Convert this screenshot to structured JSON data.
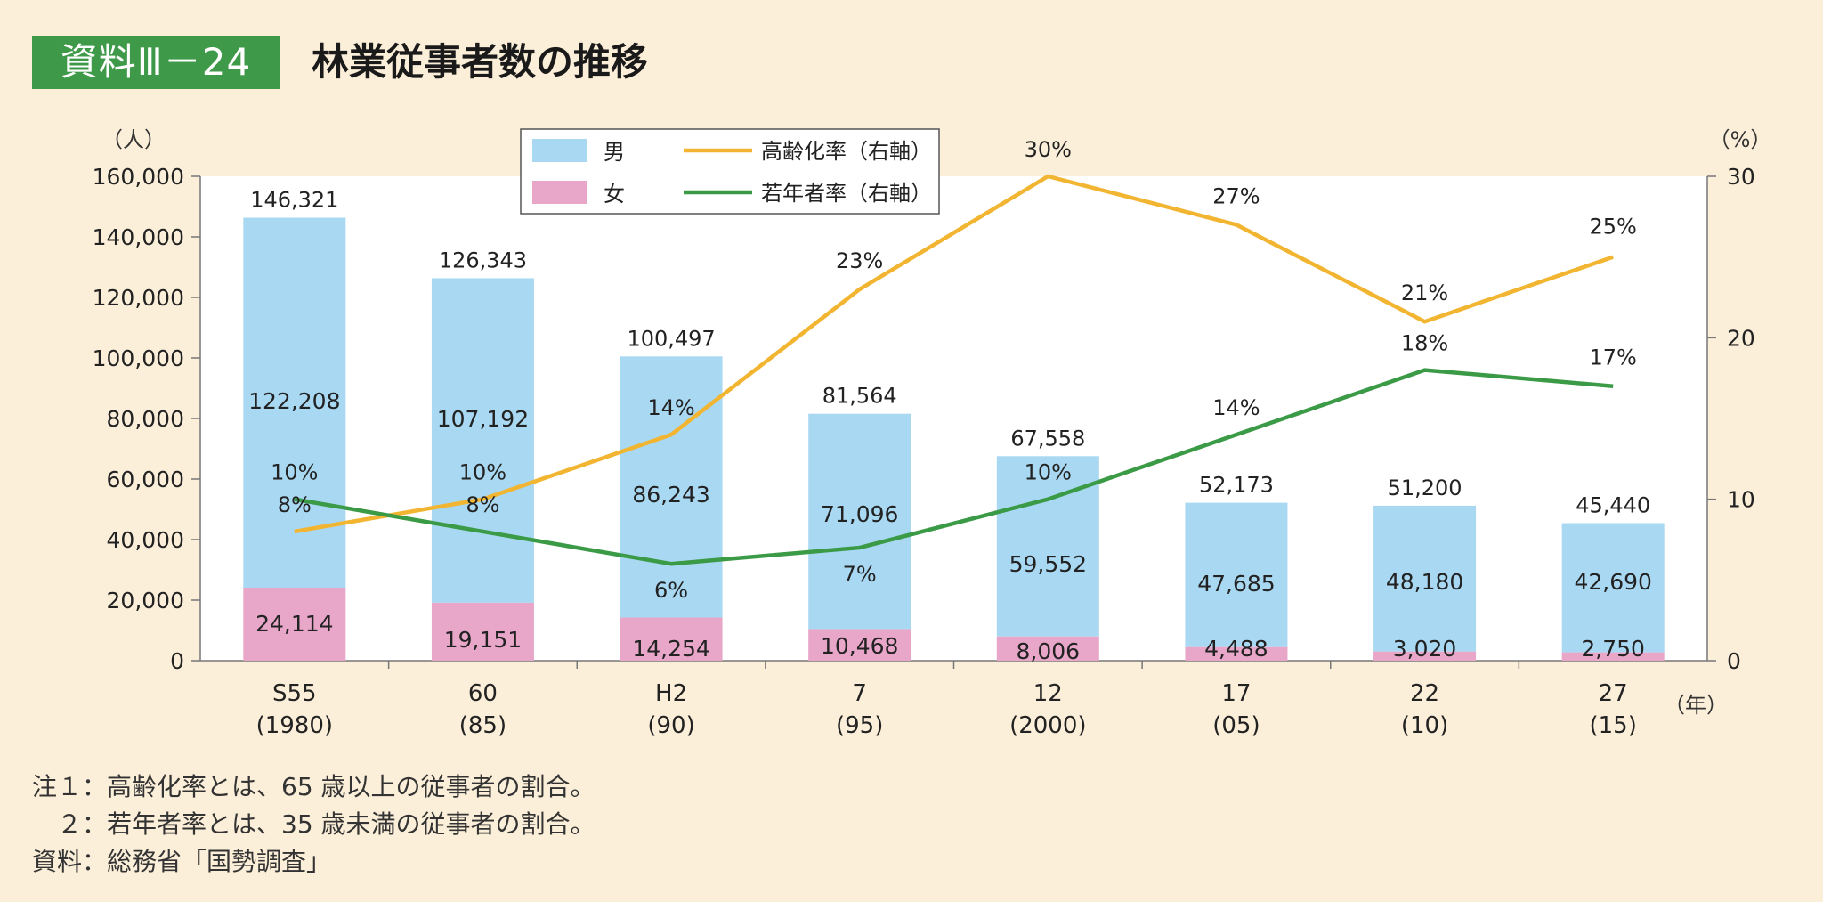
{
  "figure": {
    "label": "資料Ⅲ－24",
    "title": "林業従事者数の推移"
  },
  "colors": {
    "male": "#a9d8f2",
    "female": "#e8a6c9",
    "aging": "#f2b531",
    "youth": "#3a9a46",
    "plot_bg": "#ffffff",
    "badge": "#3e9a48"
  },
  "chart_data": {
    "type": "bar",
    "stacked": true,
    "title": "林業従事者数の推移",
    "categories": [
      "S55\n(1980)",
      "60\n(85)",
      "H2\n(90)",
      "7\n(95)",
      "12\n(2000)",
      "17\n(05)",
      "22\n(10)",
      "27\n(15)"
    ],
    "category_labels": {
      "top": [
        "S55",
        "60",
        "H2",
        "7",
        "12",
        "17",
        "22",
        "27"
      ],
      "bottom": [
        "(1980)",
        "(85)",
        "(90)",
        "(95)",
        "(2000)",
        "(05)",
        "(10)",
        "(15)"
      ]
    },
    "series": [
      {
        "name": "女",
        "values": [
          24114,
          19151,
          14254,
          10468,
          8006,
          4488,
          3020,
          2750
        ],
        "labels": [
          "24,114",
          "19,151",
          "14,254",
          "10,468",
          "8,006",
          "4,488",
          "3,020",
          "2,750"
        ]
      },
      {
        "name": "男",
        "values": [
          122208,
          107192,
          86243,
          71096,
          59552,
          47685,
          48180,
          42690
        ],
        "labels": [
          "122,208",
          "107,192",
          "86,243",
          "71,096",
          "59,552",
          "47,685",
          "48,180",
          "42,690"
        ]
      }
    ],
    "totals": [
      146321,
      126343,
      100497,
      81564,
      67558,
      52173,
      51200,
      45440
    ],
    "total_labels": [
      "146,321",
      "126,343",
      "100,497",
      "81,564",
      "67,558",
      "52,173",
      "51,200",
      "45,440"
    ],
    "lines": [
      {
        "name": "高齢化率（右軸）",
        "axis": "right",
        "values": [
          8,
          10,
          14,
          23,
          30,
          27,
          21,
          25
        ],
        "labels": [
          "8%",
          "10%",
          "14%",
          "23%",
          "30%",
          "27%",
          "21%",
          "25%"
        ]
      },
      {
        "name": "若年者率（右軸）",
        "axis": "right",
        "values": [
          10,
          8,
          6,
          7,
          10,
          14,
          18,
          17
        ],
        "labels": [
          "10%",
          "8%",
          "6%",
          "7%",
          "10%",
          "14%",
          "18%",
          "17%"
        ]
      }
    ],
    "legend": {
      "items": [
        "男",
        "女",
        "高齢化率（右軸）",
        "若年者率（右軸）"
      ],
      "position": "top-center"
    },
    "ylabel": "（人）",
    "y2label": "（%）",
    "xlabel": "（年）",
    "ylim": [
      0,
      160000
    ],
    "y2lim": [
      0,
      30
    ],
    "yticks": [
      "0",
      "20,000",
      "40,000",
      "60,000",
      "80,000",
      "100,000",
      "120,000",
      "140,000",
      "160,000"
    ],
    "y2ticks": [
      "0",
      "10",
      "20",
      "30"
    ]
  },
  "notes": [
    "注１：高齢化率とは、65 歳以上の従事者の割合。",
    "　２：若年者率とは、35 歳未満の従事者の割合。",
    "資料：総務省「国勢調査」"
  ]
}
